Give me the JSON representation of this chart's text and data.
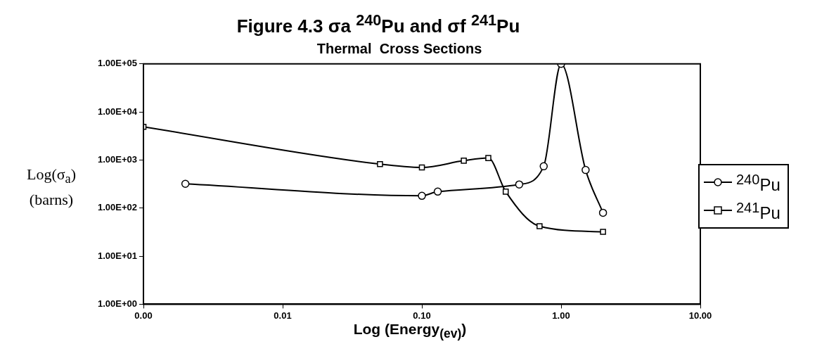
{
  "chart_data": {
    "type": "line",
    "title": "Figure 4.3 σa $^{240}$Pu and σf $^{241}$Pu",
    "subtitle": "Thermal  Cross Sections",
    "xlabel": "Log (Energy$_{(ev)}$)",
    "ylabel": "Log(σ$_{a}$)\n(barns)",
    "log": "xy",
    "xlim": [
      0.001,
      10
    ],
    "xticks": [
      {
        "value": 0.001,
        "label": "0.00"
      },
      {
        "value": 0.01,
        "label": "0.01"
      },
      {
        "value": 0.1,
        "label": "0.10"
      },
      {
        "value": 1,
        "label": "1.00"
      },
      {
        "value": 10,
        "label": "10.00"
      }
    ],
    "ylim": [
      1,
      100000
    ],
    "yticks": [
      {
        "value": 1,
        "label": "1.00E+00"
      },
      {
        "value": 10,
        "label": "1.00E+01"
      },
      {
        "value": 100,
        "label": "1.00E+02"
      },
      {
        "value": 1000,
        "label": "1.00E+03"
      },
      {
        "value": 10000,
        "label": "1.00E+04"
      },
      {
        "value": 100000,
        "label": "1.00E+05"
      }
    ],
    "legend": "right",
    "series": [
      {
        "name": "$^{240}$Pu",
        "color": "#000000",
        "marker": "circle",
        "x": [
          0.002,
          0.1,
          0.13,
          0.5,
          0.75,
          1,
          1.5,
          2
        ],
        "values": [
          320,
          180,
          220,
          310,
          740,
          100000,
          620,
          80
        ]
      },
      {
        "name": "$^{241}$Pu",
        "color": "#000000",
        "marker": "square",
        "x": [
          0.001,
          0.05,
          0.1,
          0.2,
          0.3,
          0.4,
          0.7,
          2
        ],
        "values": [
          4900,
          820,
          700,
          970,
          1100,
          220,
          42,
          32
        ]
      }
    ]
  }
}
